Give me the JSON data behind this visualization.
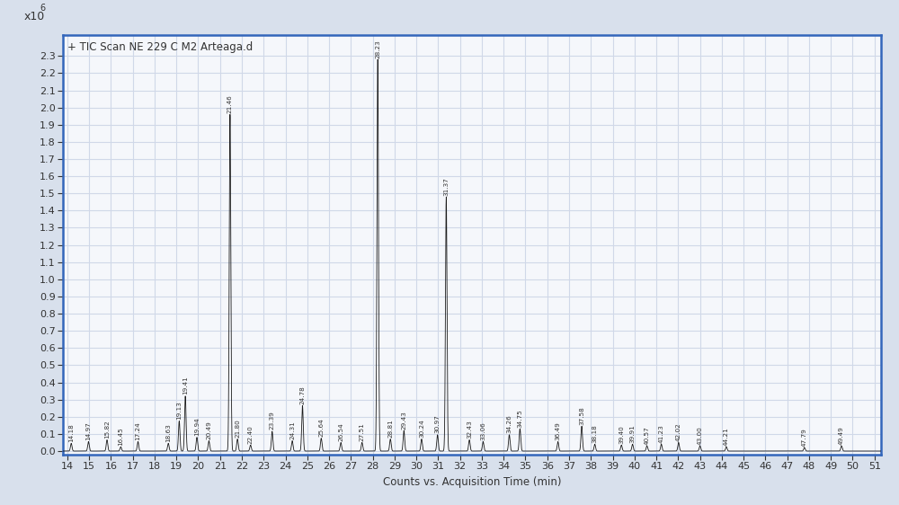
{
  "title": "+ TIC Scan NE 229 C M2 Arteaga.d",
  "xlabel": "Counts vs. Acquisition Time (min)",
  "ylabel_text": "x10",
  "ylabel_exp": "6",
  "xlim": [
    13.8,
    51.3
  ],
  "ylim": [
    -0.02,
    2.42
  ],
  "yticks": [
    0,
    0.1,
    0.2,
    0.3,
    0.4,
    0.5,
    0.6,
    0.7,
    0.8,
    0.9,
    1.0,
    1.1,
    1.2,
    1.3,
    1.4,
    1.5,
    1.6,
    1.7,
    1.8,
    1.9,
    2.0,
    2.1,
    2.2,
    2.3
  ],
  "xticks": [
    14,
    15,
    16,
    17,
    18,
    19,
    20,
    21,
    22,
    23,
    24,
    25,
    26,
    27,
    28,
    29,
    30,
    31,
    32,
    33,
    34,
    35,
    36,
    37,
    38,
    39,
    40,
    41,
    42,
    43,
    44,
    45,
    46,
    47,
    48,
    49,
    50,
    51
  ],
  "fig_bg_color": "#d8e0ec",
  "plot_bg_color": "#f5f7fb",
  "line_color": "#1a1a1a",
  "border_color": "#3366bb",
  "grid_color": "#d0d8e8",
  "tick_color": "#333333",
  "label_color": "#333333",
  "sigma": 0.035,
  "peaks": [
    {
      "rt": 14.18,
      "intensity": 0.045
    },
    {
      "rt": 14.97,
      "intensity": 0.055
    },
    {
      "rt": 15.82,
      "intensity": 0.065
    },
    {
      "rt": 16.45,
      "intensity": 0.025
    },
    {
      "rt": 17.24,
      "intensity": 0.055
    },
    {
      "rt": 18.63,
      "intensity": 0.045
    },
    {
      "rt": 19.13,
      "intensity": 0.175
    },
    {
      "rt": 19.41,
      "intensity": 0.32
    },
    {
      "rt": 19.94,
      "intensity": 0.08
    },
    {
      "rt": 20.49,
      "intensity": 0.06
    },
    {
      "rt": 21.46,
      "intensity": 1.96
    },
    {
      "rt": 21.8,
      "intensity": 0.07
    },
    {
      "rt": 22.4,
      "intensity": 0.035
    },
    {
      "rt": 23.39,
      "intensity": 0.115
    },
    {
      "rt": 24.31,
      "intensity": 0.06
    },
    {
      "rt": 24.78,
      "intensity": 0.265
    },
    {
      "rt": 25.64,
      "intensity": 0.075
    },
    {
      "rt": 26.54,
      "intensity": 0.05
    },
    {
      "rt": 27.51,
      "intensity": 0.05
    },
    {
      "rt": 28.23,
      "intensity": 2.28
    },
    {
      "rt": 28.81,
      "intensity": 0.07
    },
    {
      "rt": 29.43,
      "intensity": 0.12
    },
    {
      "rt": 30.24,
      "intensity": 0.07
    },
    {
      "rt": 30.97,
      "intensity": 0.095
    },
    {
      "rt": 31.37,
      "intensity": 1.48
    },
    {
      "rt": 32.43,
      "intensity": 0.065
    },
    {
      "rt": 33.06,
      "intensity": 0.055
    },
    {
      "rt": 34.26,
      "intensity": 0.095
    },
    {
      "rt": 34.75,
      "intensity": 0.13
    },
    {
      "rt": 36.49,
      "intensity": 0.055
    },
    {
      "rt": 37.58,
      "intensity": 0.145
    },
    {
      "rt": 38.18,
      "intensity": 0.04
    },
    {
      "rt": 39.4,
      "intensity": 0.035
    },
    {
      "rt": 39.91,
      "intensity": 0.04
    },
    {
      "rt": 40.57,
      "intensity": 0.03
    },
    {
      "rt": 41.23,
      "intensity": 0.04
    },
    {
      "rt": 42.02,
      "intensity": 0.05
    },
    {
      "rt": 43.0,
      "intensity": 0.03
    },
    {
      "rt": 44.21,
      "intensity": 0.025
    },
    {
      "rt": 47.79,
      "intensity": 0.02
    },
    {
      "rt": 49.49,
      "intensity": 0.03
    }
  ]
}
